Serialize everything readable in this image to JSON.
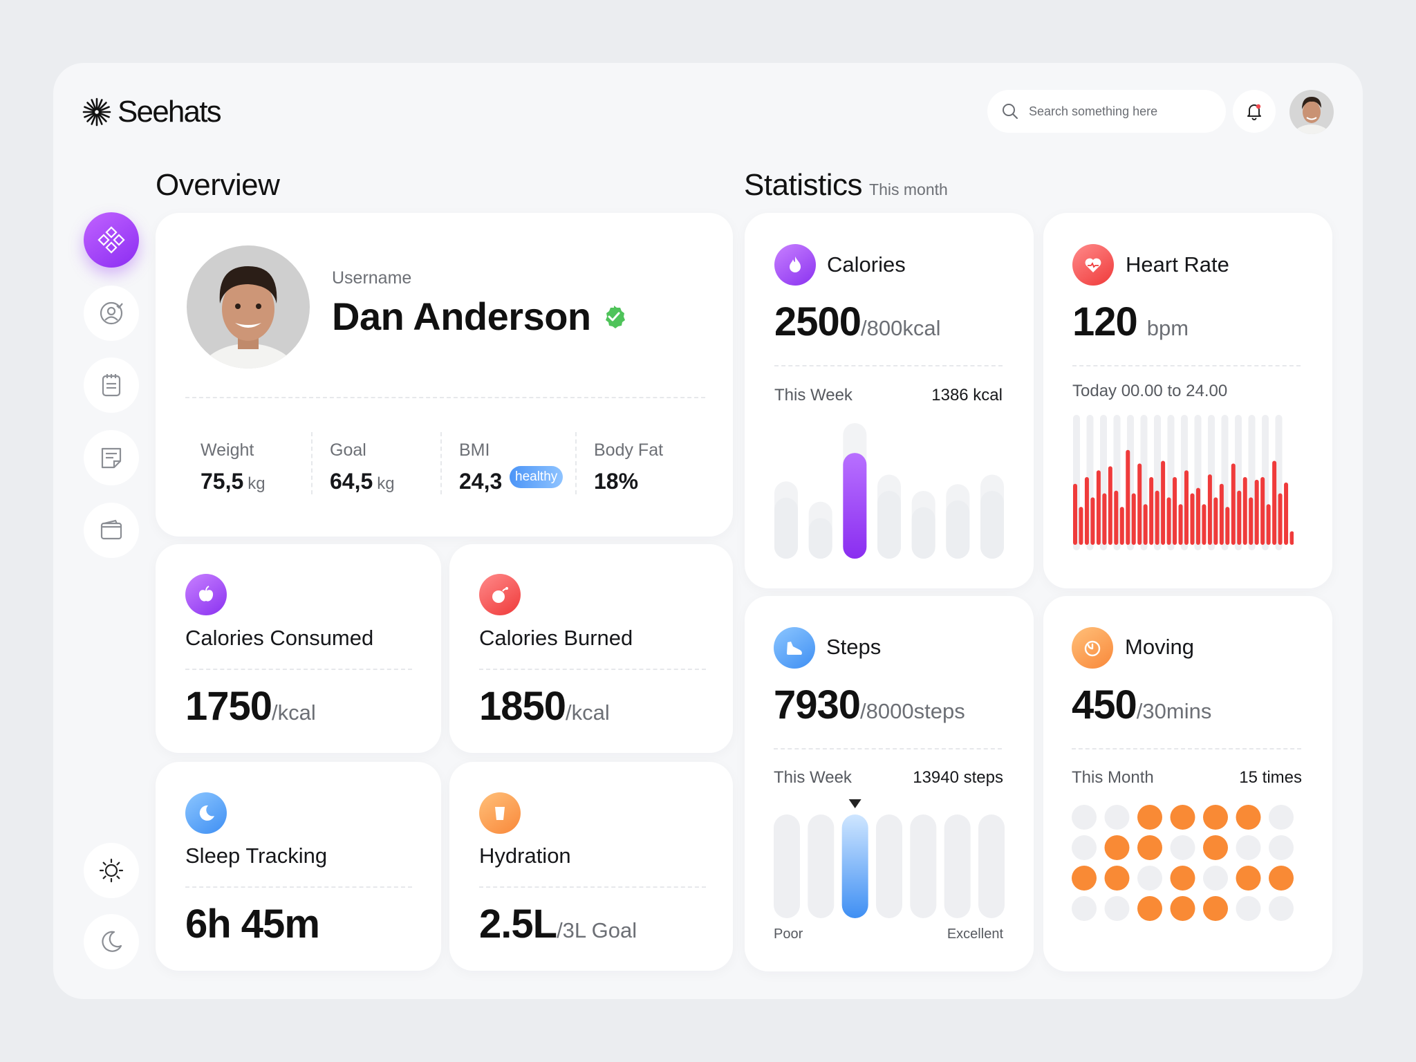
{
  "app": {
    "logo_text": "Seehats",
    "search_placeholder": "Search something here"
  },
  "sidebar": {
    "items": [
      {
        "icon": "dashboard-icon",
        "active": true
      },
      {
        "icon": "profile-target-icon"
      },
      {
        "icon": "notepad-icon"
      },
      {
        "icon": "notes-icon"
      },
      {
        "icon": "wallet-icon"
      }
    ],
    "theme": [
      {
        "icon": "sun-icon"
      },
      {
        "icon": "moon-icon"
      }
    ]
  },
  "overview": {
    "title": "Overview",
    "profile": {
      "username_label": "Username",
      "name": "Dan Anderson",
      "stats": [
        {
          "label": "Weight",
          "value": "75,5",
          "unit": "kg"
        },
        {
          "label": "Goal",
          "value": "64,5",
          "unit": "kg"
        },
        {
          "label": "BMI",
          "value": "24,3",
          "badge": "healthy"
        },
        {
          "label": "Body Fat",
          "value": "18%"
        }
      ]
    },
    "cards": {
      "consumed": {
        "title": "Calories Consumed",
        "value": "1750",
        "unit": "/kcal"
      },
      "burned": {
        "title": "Calories Burned",
        "value": "1850",
        "unit": "/kcal"
      },
      "sleep": {
        "title": "Sleep Tracking",
        "value": "6h 45m"
      },
      "hydration": {
        "title": "Hydration",
        "value": "2.5L",
        "unit": "/3L Goal"
      }
    }
  },
  "statistics": {
    "title": "Statistics",
    "subtitle": "This month",
    "calories": {
      "title": "Calories",
      "value": "2500",
      "unit": "/800kcal",
      "period_label": "This Week",
      "period_value": "1386 kcal"
    },
    "heart": {
      "title": "Heart Rate",
      "value": "120",
      "unit": "bpm",
      "period_label": "Today 00.00 to 24.00"
    },
    "steps": {
      "title": "Steps",
      "value": "7930",
      "unit": "/8000steps",
      "period_label": "This Week",
      "period_value": "13940 steps",
      "scale_low": "Poor",
      "scale_high": "Excellent"
    },
    "moving": {
      "title": "Moving",
      "value": "450",
      "unit": "/30mins",
      "period_label": "This Month",
      "period_value": "15 times"
    }
  },
  "chart_data": [
    {
      "type": "bar",
      "name": "calories-week",
      "values": [
        0.45,
        0.3,
        0.78,
        0.5,
        0.38,
        0.43,
        0.5
      ],
      "highlight_index": 2,
      "colors": {
        "accent": "#9b3ef5",
        "track": "#f2f3f5",
        "bar": "#eceef1"
      }
    },
    {
      "type": "bar",
      "name": "heart-rate-day",
      "values": [
        0.45,
        0.28,
        0.5,
        0.35,
        0.55,
        0.38,
        0.58,
        0.4,
        0.28,
        0.7,
        0.38,
        0.6,
        0.3,
        0.5,
        0.4,
        0.62,
        0.35,
        0.5,
        0.3,
        0.55,
        0.38,
        0.42,
        0.3,
        0.52,
        0.35,
        0.45,
        0.28,
        0.6,
        0.4,
        0.5,
        0.35,
        0.48,
        0.5,
        0.3,
        0.62,
        0.38,
        0.46,
        0.1
      ],
      "colors": {
        "accent": "#ef3b3b",
        "track": "#eeeff2"
      }
    },
    {
      "type": "bar",
      "name": "steps-week",
      "values": [
        1,
        1,
        1,
        1,
        1,
        1,
        1
      ],
      "highlight_index": 2,
      "colors": {
        "accent": "#3f8ff3",
        "track": "#eeeff2"
      }
    },
    {
      "type": "heatmap",
      "name": "moving-month",
      "grid": [
        [
          0,
          0,
          1,
          1,
          1,
          1,
          0
        ],
        [
          0,
          1,
          1,
          0,
          1,
          0,
          0
        ],
        [
          1,
          1,
          0,
          1,
          0,
          1,
          1
        ],
        [
          0,
          0,
          1,
          1,
          1,
          0,
          0
        ]
      ],
      "colors": {
        "on": "#f98a35",
        "off": "#eeeff2"
      }
    }
  ]
}
